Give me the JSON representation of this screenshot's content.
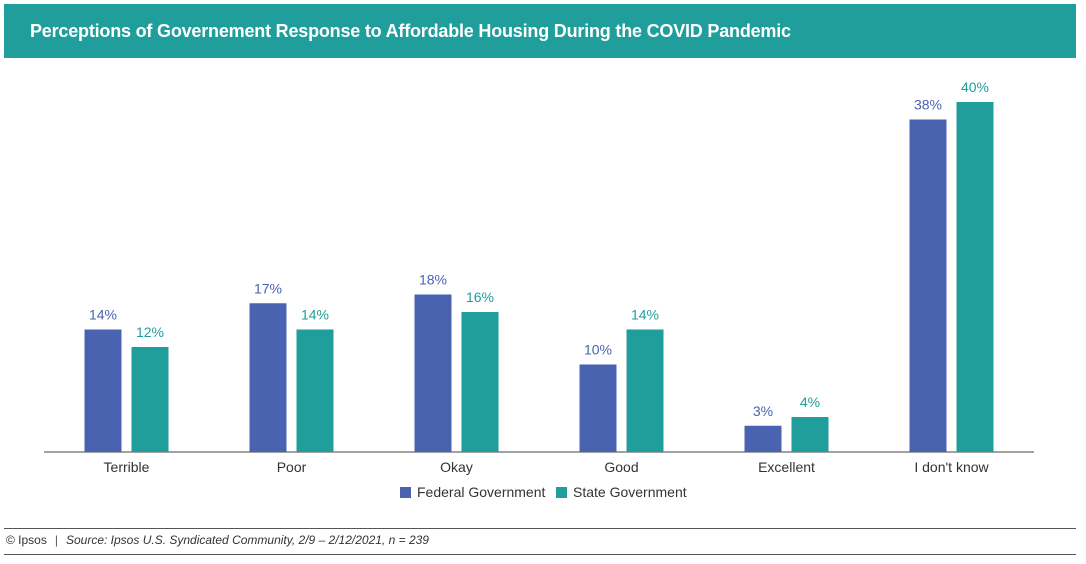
{
  "header": {
    "title": "Perceptions of Governement Response to Affordable Housing During the COVID Pandemic"
  },
  "chart_data": {
    "type": "bar",
    "categories": [
      "Terrible",
      "Poor",
      "Okay",
      "Good",
      "Excellent",
      "I don't know"
    ],
    "series": [
      {
        "name": "Federal Government",
        "values": [
          14,
          17,
          18,
          10,
          3,
          38
        ],
        "labels": [
          "14%",
          "17%",
          "18%",
          "10%",
          "3%",
          "38%"
        ],
        "color": "#4a63b0"
      },
      {
        "name": "State Government",
        "values": [
          12,
          14,
          16,
          14,
          4,
          40
        ],
        "labels": [
          "12%",
          "14%",
          "16%",
          "14%",
          "4%",
          "40%"
        ],
        "color": "#1f9e9b"
      }
    ],
    "ylim": [
      0,
      40
    ],
    "grid": false,
    "legend_position": "bottom"
  },
  "footer": {
    "brand": "© Ipsos",
    "separator": "|",
    "source": "Source: Ipsos U.S. Syndicated Community, 2/9 – 2/12/2021, n = 239"
  },
  "colors": {
    "title_bar": "#1f9e9b",
    "federal": "#4a63b0",
    "state": "#1f9e9b"
  }
}
